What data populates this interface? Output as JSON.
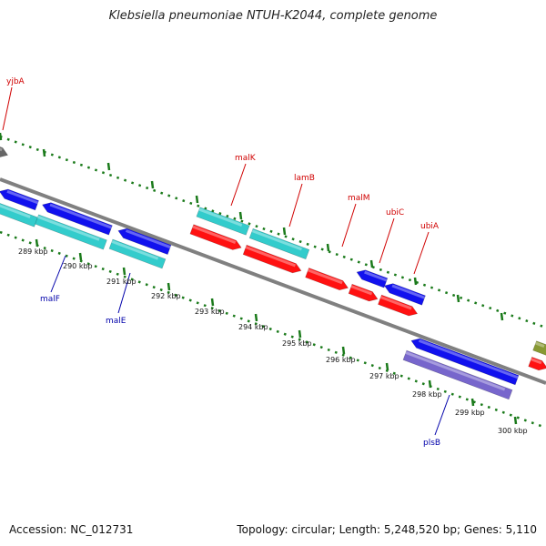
{
  "title": "Klebsiella pneumoniae NTUH-K2044, complete genome",
  "footer": {
    "accession": "Accession: NC_012731",
    "summary": "Topology: circular; Length: 5,248,520 bp; Genes: 5,110"
  },
  "colors": {
    "backbone": "#808080",
    "ruler": "#1a7a1a",
    "gene_cyan": "#33cccc",
    "gene_red": "#ff1111",
    "gene_blue": "#1111ee",
    "gene_purple": "#7766cc",
    "gene_gray": "#666666",
    "gene_olive": "#889933",
    "label_plus": "#d00000",
    "label_minus": "#0000aa"
  },
  "ruler_labels": [
    "289 kbp",
    "290 kbp",
    "291 kbp",
    "292 kbp",
    "293 kbp",
    "294 kbp",
    "295 kbp",
    "296 kbp",
    "297 kbp",
    "298 kbp",
    "299 kbp",
    "300 kbp"
  ],
  "gene_labels": [
    {
      "name": "yjbA",
      "strand": "plus"
    },
    {
      "name": "malK",
      "strand": "plus"
    },
    {
      "name": "lamB",
      "strand": "plus"
    },
    {
      "name": "malM",
      "strand": "plus"
    },
    {
      "name": "ubiC",
      "strand": "plus"
    },
    {
      "name": "ubiA",
      "strand": "plus"
    },
    {
      "name": "malF",
      "strand": "minus"
    },
    {
      "name": "malE",
      "strand": "minus"
    },
    {
      "name": "plsB",
      "strand": "minus"
    }
  ]
}
